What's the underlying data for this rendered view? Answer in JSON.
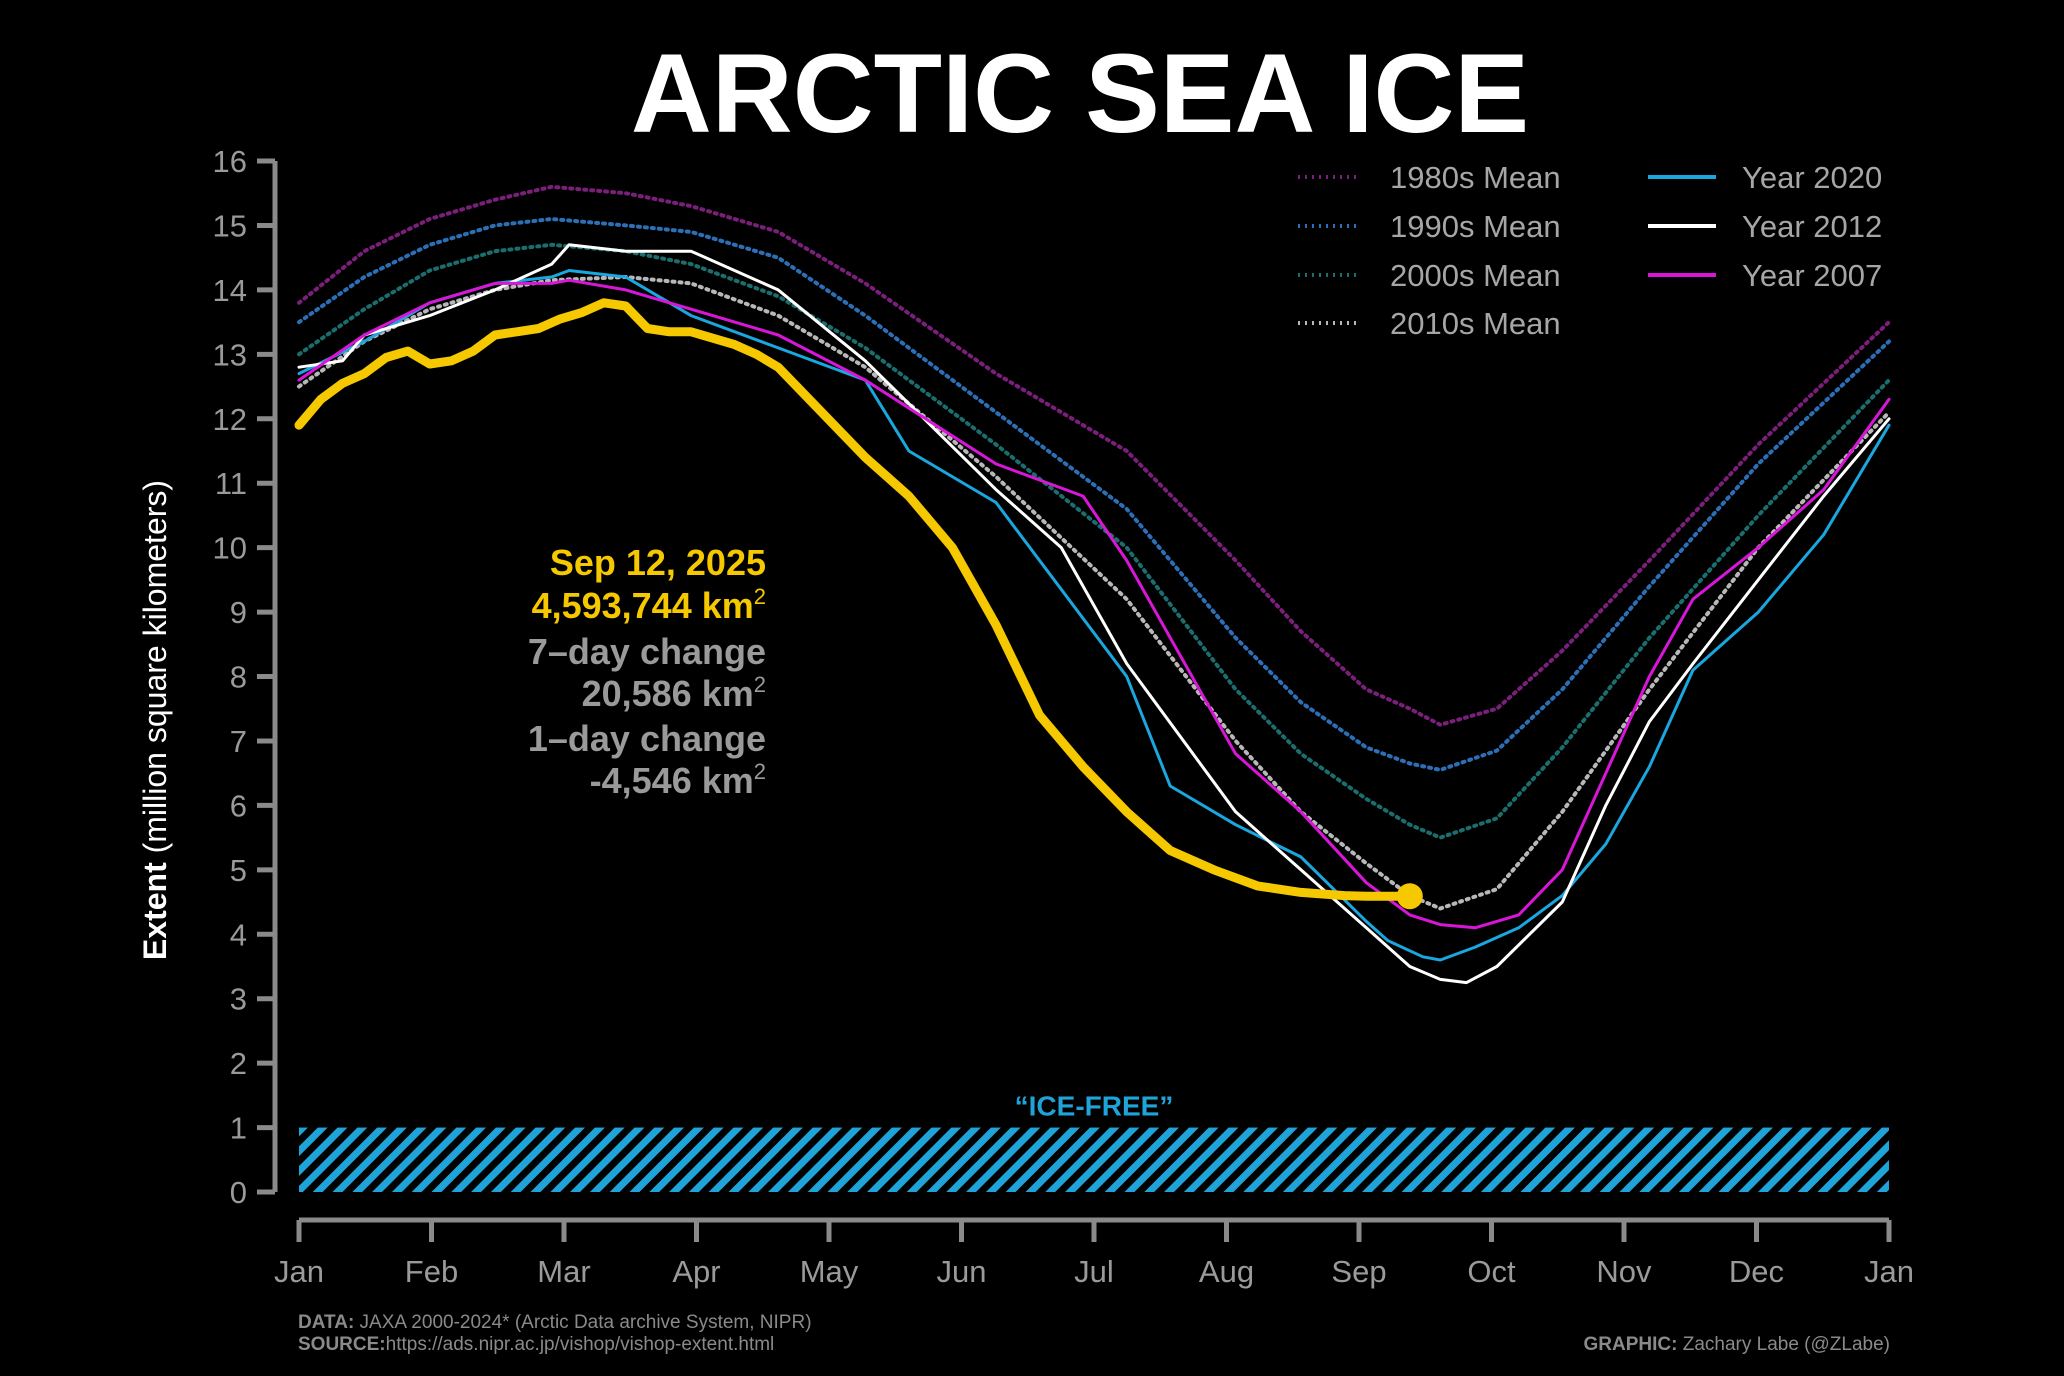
{
  "title": "ARCTIC SEA ICE",
  "chart_data": {
    "type": "line",
    "ylabel_bold": "Extent",
    "ylabel_rest": " (million square kilometers)",
    "ylim": [
      0,
      16
    ],
    "yticks": [
      "0",
      "1",
      "2",
      "3",
      "4",
      "5",
      "6",
      "7",
      "8",
      "9",
      "10",
      "11",
      "12",
      "13",
      "14",
      "15",
      "16"
    ],
    "xticks": [
      "Jan",
      "Feb",
      "Mar",
      "Apr",
      "May",
      "Jun",
      "Jul",
      "Aug",
      "Sep",
      "Oct",
      "Nov",
      "Dec",
      "Jan"
    ],
    "legend_placement": "top-right",
    "grid": false,
    "ice_free": {
      "label": "“ICE-FREE”",
      "range": [
        0,
        1
      ],
      "color": "#1fa4d9"
    },
    "series": [
      {
        "name": "1980s Mean",
        "style": "dotted",
        "color": "#7a1f7a",
        "x": [
          0,
          15,
          30,
          45,
          58,
          75,
          90,
          110,
          130,
          160,
          190,
          215,
          230,
          245,
          255,
          262,
          275,
          290,
          310,
          335,
          365
        ],
        "y": [
          13.8,
          14.6,
          15.1,
          15.4,
          15.6,
          15.5,
          15.3,
          14.9,
          14.1,
          12.7,
          11.5,
          9.8,
          8.7,
          7.8,
          7.5,
          7.25,
          7.5,
          8.4,
          9.8,
          11.6,
          13.5
        ]
      },
      {
        "name": "1990s Mean",
        "style": "dotted",
        "color": "#2d6fb7",
        "x": [
          0,
          15,
          30,
          45,
          58,
          75,
          90,
          110,
          130,
          160,
          190,
          215,
          230,
          245,
          255,
          262,
          275,
          290,
          310,
          335,
          365
        ],
        "y": [
          13.5,
          14.2,
          14.7,
          15.0,
          15.1,
          15.0,
          14.9,
          14.5,
          13.6,
          12.1,
          10.6,
          8.6,
          7.6,
          6.9,
          6.65,
          6.55,
          6.85,
          7.8,
          9.4,
          11.3,
          13.2
        ]
      },
      {
        "name": "2000s Mean",
        "style": "dotted",
        "color": "#1c6e6e",
        "x": [
          0,
          15,
          30,
          45,
          58,
          75,
          90,
          110,
          130,
          160,
          190,
          215,
          230,
          245,
          255,
          262,
          275,
          290,
          310,
          335,
          365
        ],
        "y": [
          13.0,
          13.7,
          14.3,
          14.6,
          14.7,
          14.6,
          14.4,
          13.9,
          13.1,
          11.6,
          10.0,
          7.8,
          6.8,
          6.1,
          5.7,
          5.5,
          5.8,
          6.9,
          8.6,
          10.5,
          12.6
        ]
      },
      {
        "name": "2010s Mean",
        "style": "dotted",
        "color": "#b8b8b8",
        "x": [
          0,
          15,
          30,
          45,
          58,
          75,
          90,
          110,
          130,
          160,
          190,
          215,
          230,
          245,
          255,
          262,
          275,
          290,
          310,
          335,
          365
        ],
        "y": [
          12.5,
          13.2,
          13.7,
          14.0,
          14.15,
          14.2,
          14.1,
          13.6,
          12.8,
          11.1,
          9.2,
          7.0,
          5.9,
          5.1,
          4.6,
          4.4,
          4.7,
          5.9,
          7.8,
          10.0,
          12.1
        ]
      },
      {
        "name": "Year 2020",
        "style": "solid",
        "color": "#1aa6de",
        "x": [
          0,
          15,
          30,
          45,
          58,
          62,
          75,
          90,
          110,
          130,
          140,
          160,
          190,
          200,
          215,
          230,
          245,
          250,
          258,
          262,
          270,
          280,
          290,
          300,
          310,
          320,
          335,
          350,
          365
        ],
        "y": [
          12.7,
          13.2,
          13.8,
          14.1,
          14.2,
          14.3,
          14.2,
          13.6,
          13.1,
          12.6,
          11.5,
          10.7,
          8.0,
          6.3,
          5.7,
          5.2,
          4.2,
          3.9,
          3.65,
          3.6,
          3.8,
          4.1,
          4.6,
          5.4,
          6.6,
          8.1,
          9.0,
          10.2,
          11.9
        ]
      },
      {
        "name": "Year 2012",
        "style": "solid",
        "color": "#ffffff",
        "x": [
          0,
          10,
          15,
          30,
          45,
          58,
          62,
          75,
          90,
          110,
          130,
          160,
          175,
          190,
          215,
          230,
          245,
          255,
          262,
          268,
          275,
          290,
          300,
          310,
          320,
          335,
          350,
          365
        ],
        "y": [
          12.8,
          12.9,
          13.3,
          13.6,
          14.0,
          14.4,
          14.7,
          14.6,
          14.6,
          14.0,
          12.9,
          10.9,
          10.0,
          8.2,
          5.9,
          5.0,
          4.1,
          3.5,
          3.3,
          3.25,
          3.5,
          4.5,
          6.0,
          7.3,
          8.2,
          9.5,
          10.8,
          12.0
        ]
      },
      {
        "name": "Year 2007",
        "style": "solid",
        "color": "#d816d8",
        "x": [
          0,
          15,
          30,
          45,
          58,
          62,
          75,
          90,
          110,
          130,
          160,
          180,
          190,
          215,
          230,
          245,
          255,
          262,
          270,
          280,
          290,
          300,
          310,
          320,
          335,
          350,
          365
        ],
        "y": [
          12.6,
          13.3,
          13.8,
          14.1,
          14.1,
          14.15,
          14.0,
          13.7,
          13.3,
          12.6,
          11.3,
          10.8,
          9.8,
          6.8,
          5.9,
          4.8,
          4.3,
          4.15,
          4.1,
          4.3,
          5.0,
          6.5,
          8.0,
          9.2,
          10.0,
          10.9,
          12.3
        ]
      }
    ],
    "current": {
      "name": "2025",
      "color": "#f5c800",
      "x": [
        0,
        5,
        10,
        15,
        20,
        25,
        30,
        35,
        40,
        45,
        50,
        55,
        60,
        65,
        70,
        75,
        80,
        85,
        90,
        95,
        100,
        105,
        110,
        120,
        130,
        140,
        150,
        160,
        170,
        180,
        190,
        200,
        210,
        220,
        230,
        240,
        245,
        250,
        255
      ],
      "y": [
        11.9,
        12.3,
        12.55,
        12.7,
        12.95,
        13.05,
        12.85,
        12.9,
        13.05,
        13.3,
        13.35,
        13.4,
        13.55,
        13.65,
        13.8,
        13.75,
        13.4,
        13.35,
        13.35,
        13.25,
        13.15,
        13.0,
        12.8,
        12.1,
        11.4,
        10.8,
        10.0,
        8.8,
        7.4,
        6.6,
        5.9,
        5.3,
        5.0,
        4.75,
        4.65,
        4.6,
        4.59,
        4.59,
        4.59
      ]
    },
    "annotation": {
      "date": "Sep 12, 2025",
      "extent": "4,593,744 km",
      "change7_label": "7–day change",
      "change7_value": "20,586 km",
      "change1_label": "1–day change",
      "change1_value": "-4,546 km",
      "superscript": "2"
    }
  },
  "footer": {
    "data_label": "DATA:",
    "data_text": " JAXA 2000-2024* (Arctic Data archive System, NIPR)",
    "source_label": "SOURCE:",
    "source_text": "https://ads.nipr.ac.jp/vishop/vishop-extent.html",
    "graphic_label": "GRAPHIC:",
    "graphic_text": " Zachary Labe (@ZLabe)"
  }
}
